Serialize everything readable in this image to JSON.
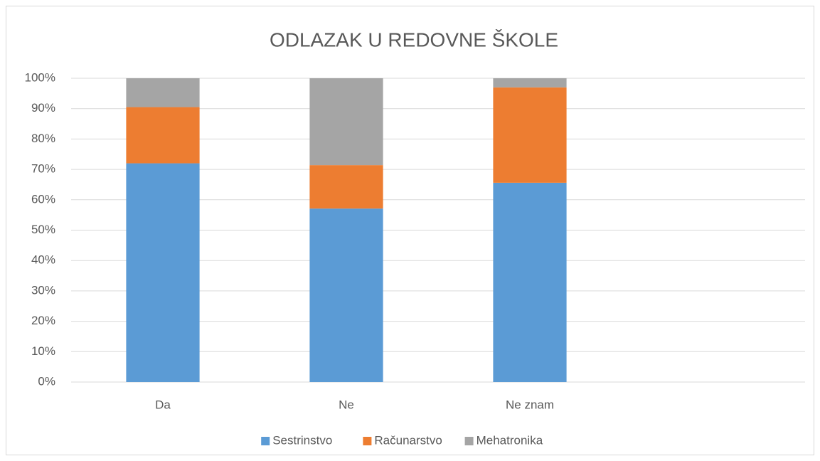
{
  "chart_data": {
    "type": "stacked_bar_100",
    "title": "ODLAZAK U REDOVNE ŠKOLE",
    "categories": [
      "Da",
      "Ne",
      "Ne znam",
      null
    ],
    "series": [
      {
        "name": "Sestrinstvo",
        "color": "#5b9bd5",
        "values": [
          72,
          57.1,
          65.6,
          null
        ]
      },
      {
        "name": "Računarstvo",
        "color": "#ed7d31",
        "values": [
          18.5,
          14.3,
          31.4,
          null
        ]
      },
      {
        "name": "Mehatronika",
        "color": "#a5a5a5",
        "values": [
          9.5,
          28.6,
          3,
          null
        ]
      }
    ],
    "ylim": [
      0,
      100
    ],
    "yticks": [
      {
        "value": 0,
        "label": "0%"
      },
      {
        "value": 10,
        "label": "10%"
      },
      {
        "value": 20,
        "label": "20%"
      },
      {
        "value": 30,
        "label": "30%"
      },
      {
        "value": 40,
        "label": "40%"
      },
      {
        "value": 50,
        "label": "50%"
      },
      {
        "value": 60,
        "label": "60%"
      },
      {
        "value": 70,
        "label": "70%"
      },
      {
        "value": 80,
        "label": "80%"
      },
      {
        "value": 90,
        "label": "90%"
      },
      {
        "value": 100,
        "label": "100%"
      }
    ],
    "grid": true,
    "legend": "bottom"
  }
}
